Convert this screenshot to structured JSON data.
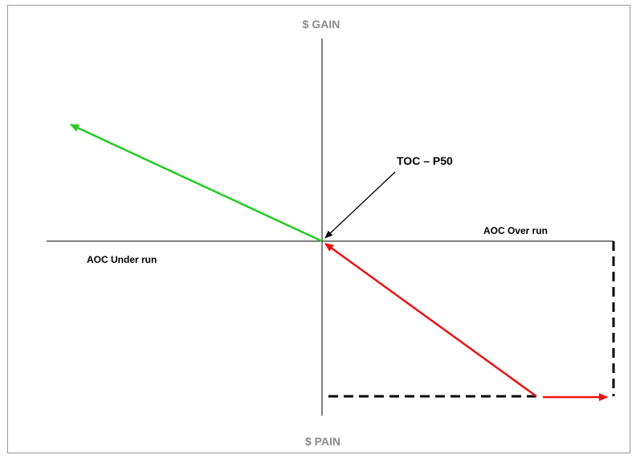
{
  "labels": {
    "top_axis": "$ GAIN",
    "bottom_axis": "$ PAIN",
    "origin_callout": "TOC – P50",
    "right_axis": "AOC Over run",
    "left_axis": "AOC Under run"
  },
  "colors": {
    "gain_arrow": "#22cc22",
    "pain_arrow": "#ee1111",
    "axis": "#000000",
    "axis_title": "#8c8c8c",
    "frame": "#9a9a9a"
  }
}
